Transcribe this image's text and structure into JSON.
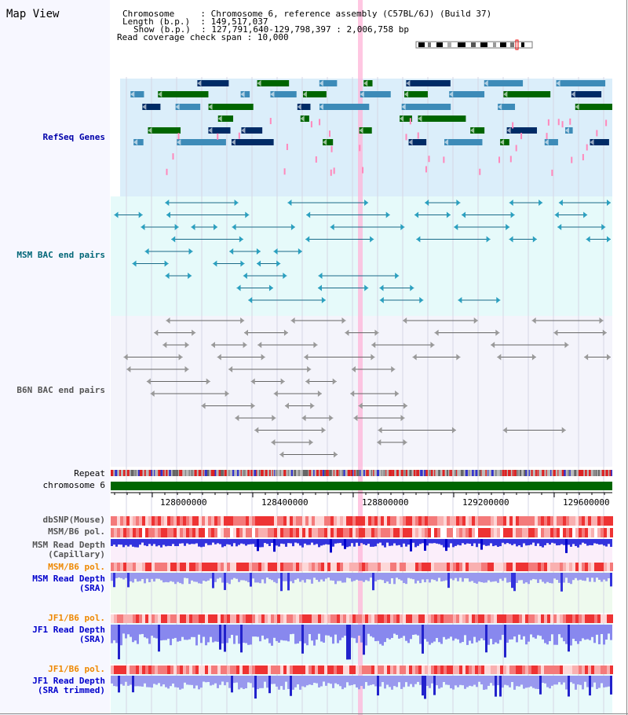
{
  "header": {
    "map_view": "Map View",
    "chromosome_label": "Chromosome",
    "chromosome_value": "Chromosome 6, reference assembly (C57BL/6J) (Build 37)",
    "length_label": "Length (b.p.)",
    "length_value": "149,517,037",
    "show_label": "Show (b.p.)",
    "show_value": "127,791,640-129,798,397 : 2,006,758 bp",
    "coverage_label": "Read coverage check span",
    "coverage_value": "10,000",
    "sep": " : "
  },
  "tracks": {
    "refseq": "RefSeq Genes",
    "msm_bac": "MSM BAC end pairs",
    "b6n_bac": "B6N BAC end pairs",
    "repeat": "Repeat",
    "chromosome": "chromosome 6",
    "dbsnp": "dbSNP(Mouse)",
    "msm_b6_pol_1": "MSM/B6 pol.",
    "msm_depth_cap_1": "MSM Read Depth",
    "msm_depth_cap_2": "(Capillary)",
    "msm_b6_pol_2": "MSM/B6 pol.",
    "msm_depth_sra_1": "MSM Read Depth",
    "msm_depth_sra_2": "(SRA)",
    "jf1_b6_pol_1": "JF1/B6 pol.",
    "jf1_depth_sra_1": "JF1 Read Depth",
    "jf1_depth_sra_2": "(SRA)",
    "jf1_b6_pol_2": "JF1/B6 pol.",
    "jf1_depth_trim_1": "JF1 Read Depth",
    "jf1_depth_trim_2": "(SRA trimmed)"
  },
  "axis": {
    "ticks": [
      "128000000",
      "128400000",
      "128800000",
      "129200000",
      "129600000"
    ]
  },
  "colors": {
    "refseq_label": "#0000aa",
    "msm_bac_label": "#006677",
    "b6n_bac_label": "#555555",
    "pol_label": "#ee8800",
    "depth_label": "#0000cc",
    "refseq_bg": "#dbeefa",
    "msm_bg": "#e6fafa",
    "b6n_bg": "#f4f4fb",
    "chromosome_bar": "#006600",
    "highlight": "#ffb4d8"
  }
}
